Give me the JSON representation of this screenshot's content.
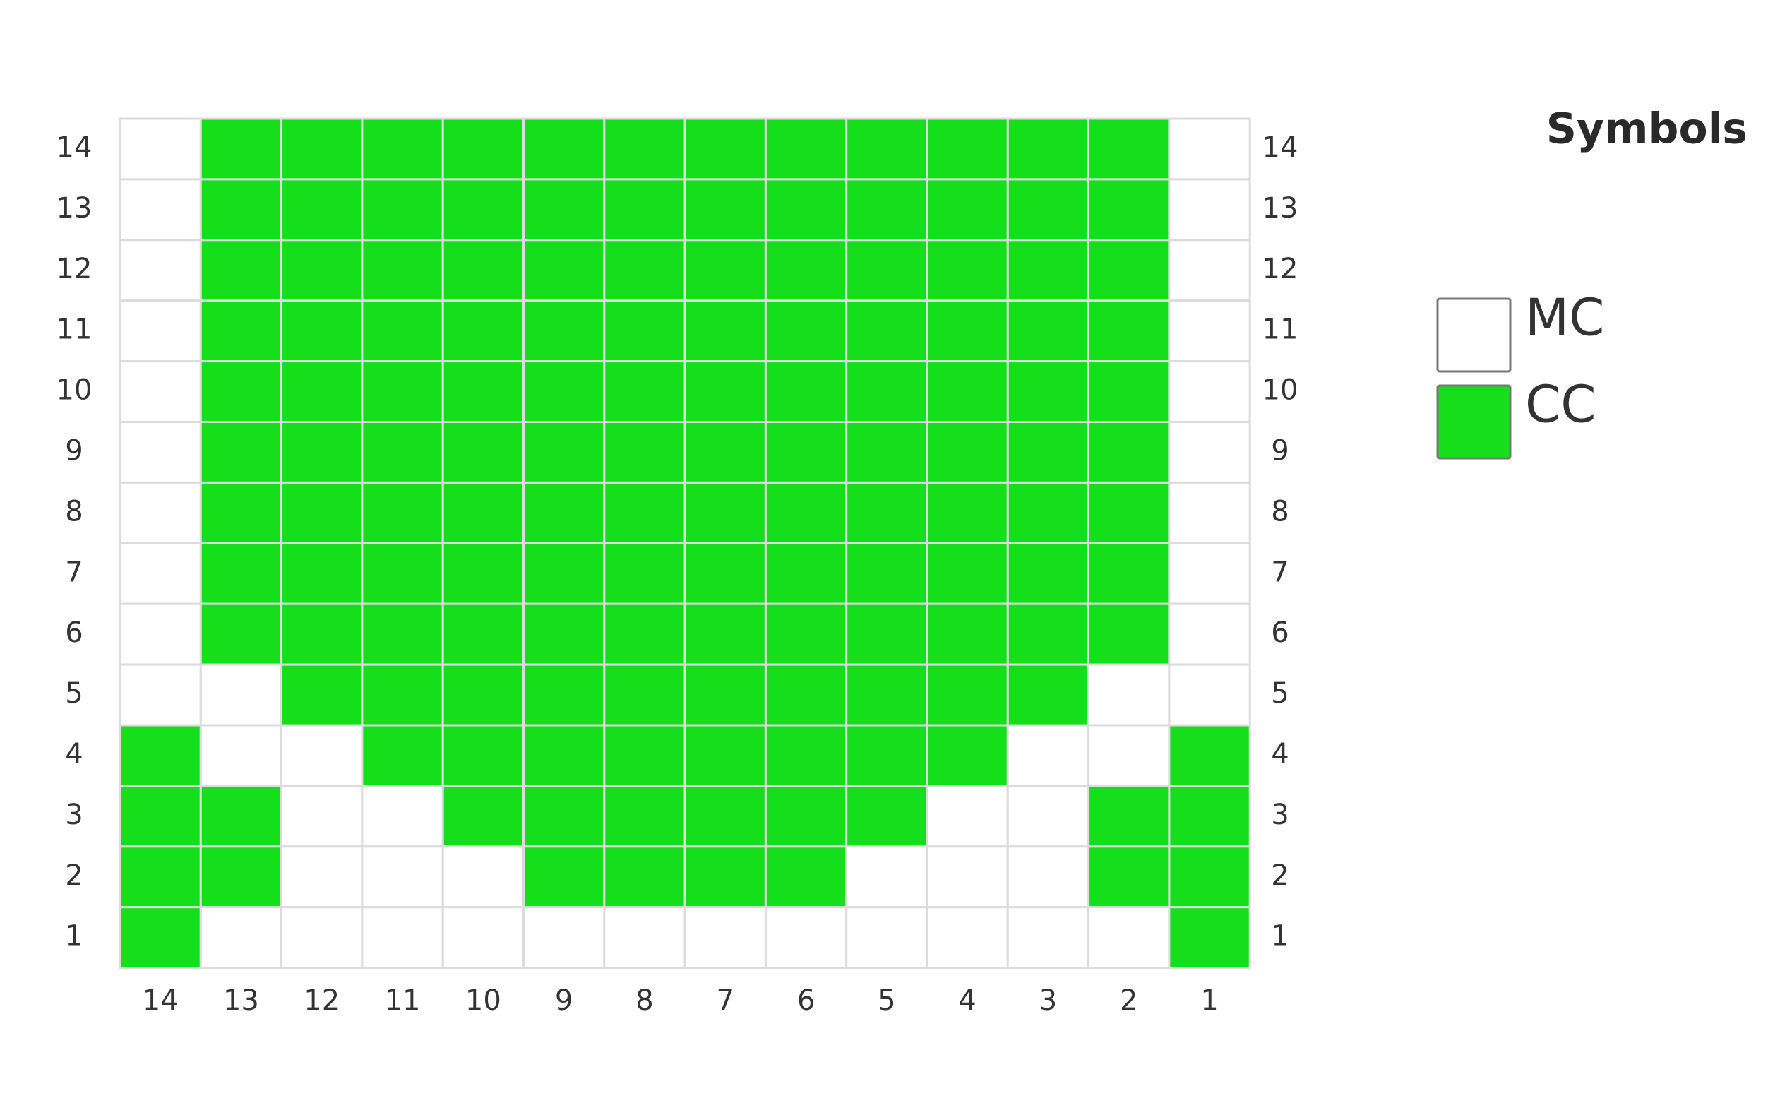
{
  "chart": {
    "row_labels": [
      "14",
      "13",
      "12",
      "11",
      "10",
      "9",
      "8",
      "7",
      "6",
      "5",
      "4",
      "3",
      "2",
      "1"
    ],
    "column_labels": [
      "14",
      "13",
      "12",
      "11",
      "10",
      "9",
      "8",
      "7",
      "6",
      "5",
      "4",
      "3",
      "2",
      "1"
    ],
    "grid": [
      [
        "MC",
        "CC",
        "CC",
        "CC",
        "CC",
        "CC",
        "CC",
        "CC",
        "CC",
        "CC",
        "CC",
        "CC",
        "CC",
        "MC"
      ],
      [
        "MC",
        "CC",
        "CC",
        "CC",
        "CC",
        "CC",
        "CC",
        "CC",
        "CC",
        "CC",
        "CC",
        "CC",
        "CC",
        "MC"
      ],
      [
        "MC",
        "CC",
        "CC",
        "CC",
        "CC",
        "CC",
        "CC",
        "CC",
        "CC",
        "CC",
        "CC",
        "CC",
        "CC",
        "MC"
      ],
      [
        "MC",
        "CC",
        "CC",
        "CC",
        "CC",
        "CC",
        "CC",
        "CC",
        "CC",
        "CC",
        "CC",
        "CC",
        "CC",
        "MC"
      ],
      [
        "MC",
        "CC",
        "CC",
        "CC",
        "CC",
        "CC",
        "CC",
        "CC",
        "CC",
        "CC",
        "CC",
        "CC",
        "CC",
        "MC"
      ],
      [
        "MC",
        "CC",
        "CC",
        "CC",
        "CC",
        "CC",
        "CC",
        "CC",
        "CC",
        "CC",
        "CC",
        "CC",
        "CC",
        "MC"
      ],
      [
        "MC",
        "CC",
        "CC",
        "CC",
        "CC",
        "CC",
        "CC",
        "CC",
        "CC",
        "CC",
        "CC",
        "CC",
        "CC",
        "MC"
      ],
      [
        "MC",
        "CC",
        "CC",
        "CC",
        "CC",
        "CC",
        "CC",
        "CC",
        "CC",
        "CC",
        "CC",
        "CC",
        "CC",
        "MC"
      ],
      [
        "MC",
        "CC",
        "CC",
        "CC",
        "CC",
        "CC",
        "CC",
        "CC",
        "CC",
        "CC",
        "CC",
        "CC",
        "CC",
        "MC"
      ],
      [
        "MC",
        "MC",
        "CC",
        "CC",
        "CC",
        "CC",
        "CC",
        "CC",
        "CC",
        "CC",
        "CC",
        "CC",
        "MC",
        "MC"
      ],
      [
        "CC",
        "MC",
        "MC",
        "CC",
        "CC",
        "CC",
        "CC",
        "CC",
        "CC",
        "CC",
        "CC",
        "MC",
        "MC",
        "CC"
      ],
      [
        "CC",
        "CC",
        "MC",
        "MC",
        "CC",
        "CC",
        "CC",
        "CC",
        "CC",
        "CC",
        "MC",
        "MC",
        "CC",
        "CC"
      ],
      [
        "CC",
        "CC",
        "MC",
        "MC",
        "MC",
        "CC",
        "CC",
        "CC",
        "CC",
        "MC",
        "MC",
        "MC",
        "CC",
        "CC"
      ],
      [
        "CC",
        "MC",
        "MC",
        "MC",
        "MC",
        "MC",
        "MC",
        "MC",
        "MC",
        "MC",
        "MC",
        "MC",
        "MC",
        "CC"
      ]
    ]
  },
  "legend": {
    "title": "Symbols",
    "items": [
      {
        "label": "MC",
        "color": "#ffffff"
      },
      {
        "label": "CC",
        "color": "#15df1a"
      }
    ]
  }
}
